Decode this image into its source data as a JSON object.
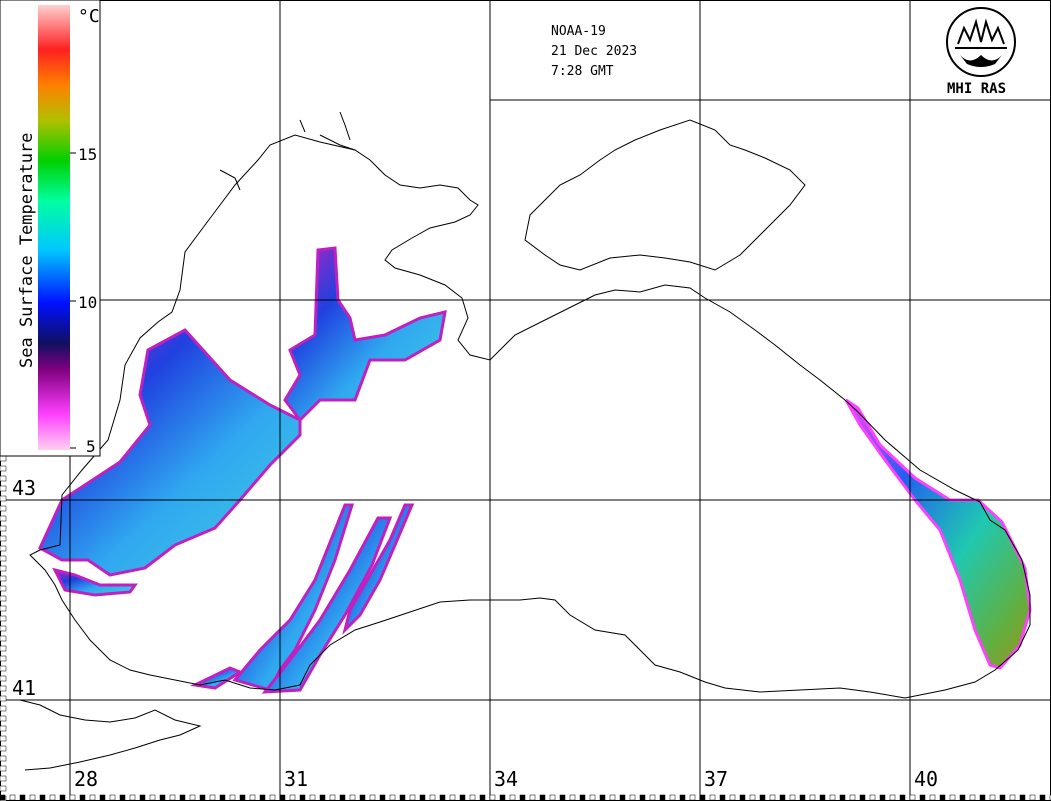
{
  "satellite": "NOAA-19",
  "date": "21 Dec 2023",
  "time": "7:28 GMT",
  "logo_text": "MHI RAS",
  "colorbar": {
    "title": "Sea Surface Temperature",
    "unit": "°C",
    "tick_labels": [
      "15",
      "10",
      "5"
    ]
  },
  "lat_labels": [
    "43",
    "41"
  ],
  "lon_labels": [
    "28",
    "31",
    "34",
    "37",
    "40"
  ],
  "colors": {
    "coast": "#000000",
    "grid": "#000000",
    "background": "#ffffff"
  },
  "colorbar_stops": [
    "#ffd0f0",
    "#ff40ff",
    "#800080",
    "#101060",
    "#0010ff",
    "#00c8ff",
    "#00ffa0",
    "#00d000",
    "#b0c000",
    "#ff8000",
    "#ff2020",
    "#ffd0d0"
  ]
}
